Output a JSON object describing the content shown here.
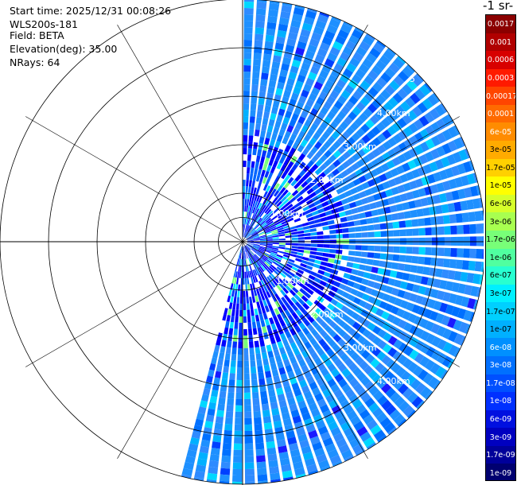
{
  "info": {
    "start_time": "Start time: 2025/12/31 00:08:26",
    "instrument": "WLS200s-181",
    "field": "Field: BETA",
    "elevation": "Elevation(deg): 35.00",
    "nrays": "NRays: 64"
  },
  "colorbar": {
    "unit_label": "-1 sr-",
    "levels": [
      {
        "label": "0.0017",
        "color": "#8b0000"
      },
      {
        "label": "0.001",
        "color": "#b00000"
      },
      {
        "label": "0.0006",
        "color": "#d80000"
      },
      {
        "label": "0.0003",
        "color": "#ff1a00"
      },
      {
        "label": "0.00017",
        "color": "#ff4500"
      },
      {
        "label": "0.0001",
        "color": "#ff6a00"
      },
      {
        "label": "6e-05",
        "color": "#ff8c00"
      },
      {
        "label": "3e-05",
        "color": "#ffab00"
      },
      {
        "label": "1.7e-05",
        "color": "#ffd000"
      },
      {
        "label": "1e-05",
        "color": "#ffff00"
      },
      {
        "label": "6e-06",
        "color": "#d6ff2a"
      },
      {
        "label": "3e-06",
        "color": "#a8ff50"
      },
      {
        "label": "1.7e-06",
        "color": "#78ff78"
      },
      {
        "label": "1e-06",
        "color": "#50ffa0"
      },
      {
        "label": "6e-07",
        "color": "#28ffd0"
      },
      {
        "label": "3e-07",
        "color": "#00f0ff"
      },
      {
        "label": "1.7e-07",
        "color": "#00d0ff"
      },
      {
        "label": "1e-07",
        "color": "#00b0ff"
      },
      {
        "label": "6e-08",
        "color": "#0090ff"
      },
      {
        "label": "3e-08",
        "color": "#0070ff"
      },
      {
        "label": "1.7e-08",
        "color": "#0050ff"
      },
      {
        "label": "1e-08",
        "color": "#0030ff"
      },
      {
        "label": "6e-09",
        "color": "#0010e0"
      },
      {
        "label": "3e-09",
        "color": "#0000c0"
      },
      {
        "label": "1.7e-09",
        "color": "#00009a"
      },
      {
        "label": "1e-09",
        "color": "#000070"
      }
    ]
  },
  "chart_data": {
    "type": "heatmap",
    "projection": "polar-ppi",
    "field": "BETA",
    "elevation_deg": 35.0,
    "nrays": 64,
    "sector_deg": [
      0,
      195
    ],
    "max_range_km": 5.0,
    "range_rings_km": [
      1,
      2,
      3,
      4,
      5
    ],
    "ring_labels": [
      "1.00km",
      "2.00km",
      "3.00km",
      "4.00km",
      "5"
    ],
    "dominant_value": "6e-08",
    "value_range": [
      "1e-09",
      "1.7e-06"
    ]
  }
}
